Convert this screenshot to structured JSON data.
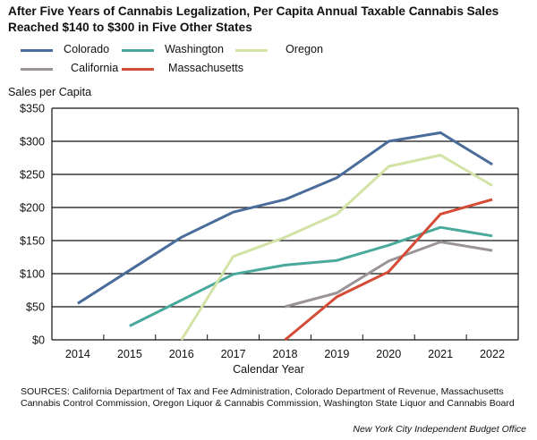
{
  "title": "After Five Years of Cannabis Legalization, Per Capita Annual Taxable Cannabis Sales Reached $140 to $300 in Five Other States",
  "legend": [
    {
      "name": "Colorado",
      "color": "#4a6c9b"
    },
    {
      "name": "Washington",
      "color": "#49a99a"
    },
    {
      "name": "Oregon",
      "color": "#d3e3a6"
    },
    {
      "name": "California",
      "color": "#9a9497"
    },
    {
      "name": "Massachusetts",
      "color": "#d44b36"
    }
  ],
  "chart_data": {
    "type": "line",
    "title": "After Five Years of Cannabis Legalization, Per Capita Annual Taxable Cannabis Sales Reached $140 to $300 in Five Other States",
    "xlabel": "Calendar Year",
    "ylabel": "Sales per Capita",
    "categories": [
      "2014",
      "2015",
      "2016",
      "2017",
      "2018",
      "2019",
      "2020",
      "2021",
      "2022"
    ],
    "yticks": [
      "$0",
      "$50",
      "$100",
      "$150",
      "$200",
      "$250",
      "$300",
      "$350"
    ],
    "ylim": [
      0,
      350
    ],
    "grid": true,
    "series": [
      {
        "name": "Colorado",
        "color": "#4a6c9b",
        "values": [
          55,
          105,
          155,
          193,
          212,
          245,
          300,
          313,
          265
        ]
      },
      {
        "name": "Washington",
        "color": "#49a99a",
        "values": [
          null,
          21,
          60,
          99,
          113,
          120,
          143,
          170,
          157
        ]
      },
      {
        "name": "Oregon",
        "color": "#d3e3a6",
        "values": [
          null,
          null,
          0,
          126,
          155,
          190,
          262,
          279,
          233
        ]
      },
      {
        "name": "California",
        "color": "#9a9497",
        "values": [
          null,
          null,
          null,
          null,
          50,
          71,
          119,
          148,
          135
        ]
      },
      {
        "name": "Massachusetts",
        "color": "#d44b36",
        "values": [
          null,
          null,
          null,
          null,
          0,
          65,
          103,
          190,
          212
        ]
      }
    ]
  },
  "sources": "SOURCES: California Department of Tax and Fee Administration, Colorado Department of Revenue, Massachusetts Cannabis Control Commission, Oregon Liquor & Cannabis Commission, Washington State Liquor and Cannabis Board",
  "credit": "New York City Independent Budget Office"
}
